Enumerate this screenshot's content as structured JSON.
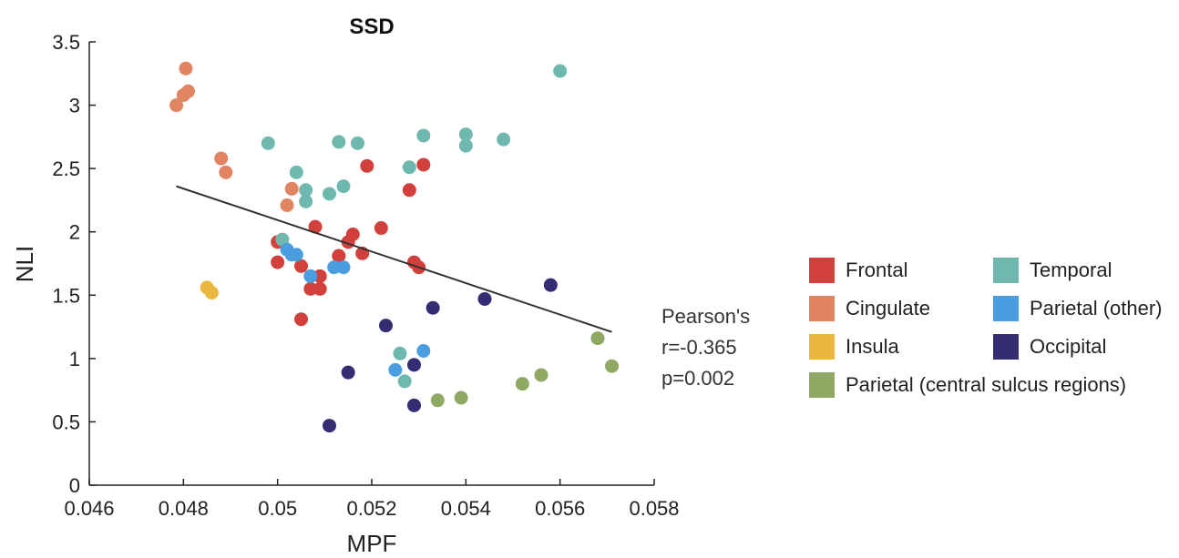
{
  "chart_data": {
    "type": "scatter",
    "title": "SSD",
    "xlabel": "MPF",
    "ylabel": "NLI",
    "xlim": [
      0.046,
      0.058
    ],
    "ylim": [
      0,
      3.5
    ],
    "xticks": [
      "0.046",
      "0.048",
      "0.05",
      "0.052",
      "0.054",
      "0.056",
      "0.058"
    ],
    "yticks": [
      "0",
      "0.5",
      "1",
      "1.5",
      "2",
      "2.5",
      "3",
      "3.5"
    ],
    "grid": false,
    "legend_position": "right",
    "trendline": {
      "x": [
        0.04785,
        0.0571
      ],
      "y": [
        2.36,
        1.21
      ],
      "color": "#333333"
    },
    "stats": [
      "Pearson's",
      "r=-0.365",
      "p=0.002"
    ],
    "series": [
      {
        "name": "Frontal",
        "color": "#d2403c",
        "x": [
          0.05,
          0.05,
          0.0505,
          0.0507,
          0.0509,
          0.0508,
          0.0509,
          0.0513,
          0.0515,
          0.0516,
          0.0518,
          0.0513,
          0.0505,
          0.0519,
          0.0522,
          0.0528,
          0.0531,
          0.0529,
          0.053
        ],
        "y": [
          1.92,
          1.76,
          1.73,
          1.55,
          1.55,
          2.04,
          1.65,
          1.81,
          1.92,
          1.98,
          1.83,
          1.81,
          1.31,
          2.52,
          2.03,
          2.33,
          2.53,
          1.76,
          1.72
        ]
      },
      {
        "name": "Cingulate",
        "color": "#e08462",
        "x": [
          0.04785,
          0.048,
          0.0481,
          0.04805,
          0.0488,
          0.0489,
          0.0503,
          0.0502
        ],
        "y": [
          3.0,
          3.08,
          3.11,
          3.29,
          2.58,
          2.47,
          2.34,
          2.21
        ]
      },
      {
        "name": "Insula",
        "color": "#eab63e",
        "x": [
          0.0485,
          0.0486
        ],
        "y": [
          1.56,
          1.52
        ]
      },
      {
        "name": "Parietal (central sulcus regions)",
        "color": "#8fa864",
        "x": [
          0.0534,
          0.0539,
          0.0552,
          0.0556,
          0.0568,
          0.0571
        ],
        "y": [
          0.67,
          0.69,
          0.8,
          0.87,
          1.16,
          0.94
        ]
      },
      {
        "name": "Temporal",
        "color": "#6fb8b0",
        "x": [
          0.0498,
          0.0504,
          0.0506,
          0.0506,
          0.0511,
          0.0514,
          0.0513,
          0.0517,
          0.0501,
          0.0528,
          0.0531,
          0.054,
          0.054,
          0.0548,
          0.056,
          0.0526,
          0.0527
        ],
        "y": [
          2.7,
          2.47,
          2.33,
          2.24,
          2.3,
          2.36,
          2.71,
          2.7,
          1.94,
          2.51,
          2.76,
          2.77,
          2.68,
          2.73,
          3.27,
          1.04,
          0.82
        ]
      },
      {
        "name": "Parietal (other)",
        "color": "#4a9ee0",
        "x": [
          0.0502,
          0.0503,
          0.0504,
          0.0507,
          0.0512,
          0.0514,
          0.0525,
          0.0531
        ],
        "y": [
          1.86,
          1.82,
          1.82,
          1.65,
          1.72,
          1.72,
          0.91,
          1.06
        ]
      },
      {
        "name": "Occipital",
        "color": "#332d74",
        "x": [
          0.0511,
          0.0515,
          0.0523,
          0.0529,
          0.0529,
          0.0533,
          0.0544,
          0.0558
        ],
        "y": [
          0.47,
          0.89,
          1.26,
          0.95,
          0.63,
          1.4,
          1.47,
          1.58
        ]
      }
    ]
  },
  "legend": [
    {
      "label": "Frontal",
      "color": "#d2403c"
    },
    {
      "label": "Cingulate",
      "color": "#e08462"
    },
    {
      "label": "Insula",
      "color": "#eab63e"
    },
    {
      "label": "Parietal (central sulcus regions)",
      "color": "#8fa864"
    },
    {
      "label": "Temporal",
      "color": "#6fb8b0"
    },
    {
      "label": "Parietal (other)",
      "color": "#4a9ee0"
    },
    {
      "label": "Occipital",
      "color": "#332d74"
    }
  ]
}
